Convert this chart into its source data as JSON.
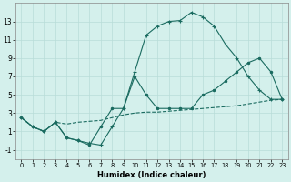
{
  "xlabel": "Humidex (Indice chaleur)",
  "xlim": [
    -0.5,
    23.5
  ],
  "ylim": [
    -2.0,
    15.0
  ],
  "xticks": [
    0,
    1,
    2,
    3,
    4,
    5,
    6,
    7,
    8,
    9,
    10,
    11,
    12,
    13,
    14,
    15,
    16,
    17,
    18,
    19,
    20,
    21,
    22,
    23
  ],
  "yticks": [
    -1,
    1,
    3,
    5,
    7,
    9,
    11,
    13
  ],
  "background_color": "#d4f0ec",
  "grid_color": "#b8ddd8",
  "line_color": "#1a6b60",
  "line1_y": [
    2.5,
    1.5,
    1.0,
    2.0,
    1.8,
    2.0,
    2.1,
    2.2,
    2.5,
    2.8,
    3.0,
    3.1,
    3.1,
    3.2,
    3.3,
    3.4,
    3.5,
    3.6,
    3.7,
    3.8,
    4.0,
    4.2,
    4.4,
    4.5
  ],
  "line2_y": [
    2.5,
    1.5,
    1.0,
    2.0,
    0.3,
    0.0,
    -0.3,
    -0.5,
    1.5,
    3.5,
    7.5,
    11.5,
    12.5,
    13.0,
    13.1,
    14.0,
    13.5,
    12.5,
    10.5,
    9.0,
    7.0,
    5.5,
    4.5,
    4.5
  ],
  "line3_y": [
    2.5,
    1.5,
    1.0,
    2.0,
    0.3,
    0.0,
    -0.5,
    1.5,
    3.5,
    3.5,
    7.0,
    5.0,
    3.5,
    3.5,
    3.5,
    3.5,
    5.0,
    5.5,
    6.5,
    7.5,
    8.5,
    9.0,
    7.5,
    4.5
  ]
}
